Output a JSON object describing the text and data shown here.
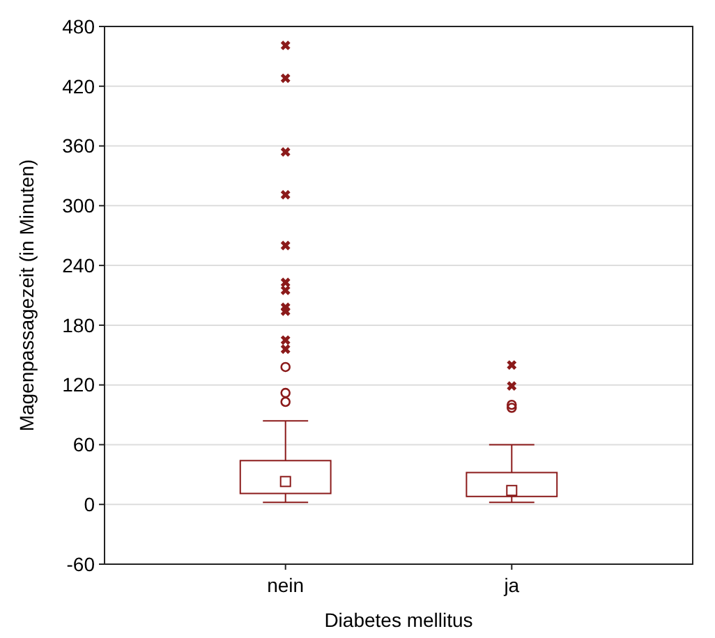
{
  "chart_data": {
    "type": "box",
    "xlabel": "Diabetes mellitus",
    "ylabel": "Magenpassagezeit (in Minuten)",
    "categories": [
      "nein",
      "ja"
    ],
    "color": "#8b1a1a",
    "boxes": [
      {
        "low": 2,
        "q1": 11,
        "median": 23,
        "q3": 44,
        "high": 84,
        "outliers": [
          461,
          428,
          354,
          311,
          260,
          223,
          215,
          198,
          194,
          165,
          156,
          138,
          112,
          103
        ]
      },
      {
        "low": 2,
        "q1": 8,
        "median": 14,
        "q3": 32,
        "high": 60,
        "outliers": [
          140,
          119,
          100,
          97
        ]
      }
    ],
    "ylim": [
      -60,
      480
    ],
    "yticks": [
      -60,
      0,
      60,
      120,
      180,
      240,
      300,
      360,
      420,
      480
    ],
    "grid": "y"
  }
}
